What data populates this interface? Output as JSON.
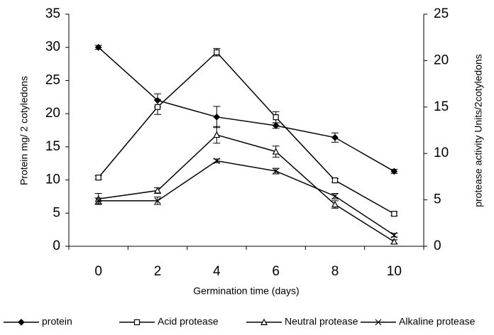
{
  "chart_data": {
    "type": "line",
    "categories": [
      "0",
      "2",
      "4",
      "6",
      "8",
      "10"
    ],
    "x_label": "Germination time (days)",
    "y_label": "Protein mg/ 2 cotyledons",
    "y2_label": "protease activity Units/2cotyledons",
    "ylim": [
      0,
      35
    ],
    "yticks": [
      0,
      5,
      10,
      15,
      20,
      25,
      30,
      35
    ],
    "y2lim": [
      0,
      25
    ],
    "y2ticks": [
      0,
      5,
      10,
      15,
      20,
      25
    ],
    "series": [
      {
        "name": "protein",
        "color": "#000000",
        "marker": "diamond",
        "values": [
          30.0,
          22.0,
          19.5,
          18.2,
          16.4,
          11.3
        ],
        "errors": [
          0.3,
          1.0,
          1.6,
          0.4,
          0.7,
          0.3
        ]
      },
      {
        "name": "Acid protease",
        "color": "#000000",
        "marker": "square",
        "axis": "y2",
        "values": [
          7.4,
          15.0,
          20.9,
          13.9,
          7.1,
          3.5
        ],
        "errors": [
          0.2,
          0.8,
          0.4,
          0.6,
          0.2,
          0.2
        ]
      },
      {
        "name": "Neutral protease",
        "color": "#000000",
        "marker": "triangle",
        "axis": "y2",
        "values": [
          5.1,
          6.0,
          12.0,
          10.2,
          4.5,
          0.5
        ],
        "errors": [
          0.6,
          0.3,
          0.9,
          0.6,
          0.4,
          0.2
        ]
      },
      {
        "name": "Alkaline protease",
        "color": "#000000",
        "marker": "cross",
        "axis": "y2",
        "values": [
          4.9,
          4.9,
          9.2,
          8.1,
          5.4,
          1.2
        ],
        "errors": [
          0.3,
          0.4,
          0.2,
          0.3,
          0.3,
          0.2
        ]
      }
    ]
  }
}
